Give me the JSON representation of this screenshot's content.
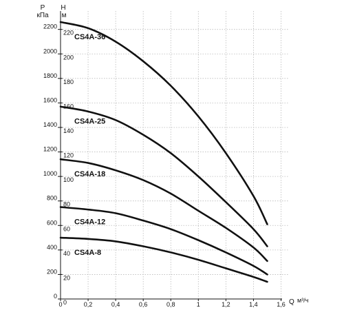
{
  "chart_data": {
    "type": "line",
    "x_label": "Q",
    "x_unit": "м³/ч",
    "x_ticks": [
      "0",
      "0,2",
      "0,4",
      "0,6",
      "0,8",
      "1",
      "1,2",
      "1,4",
      "1,6"
    ],
    "xlim": [
      0,
      1.65
    ],
    "y_left_label": "P",
    "y_left_unit": "кПа",
    "y_left_ticks": [
      "0",
      "200",
      "400",
      "600",
      "800",
      "1000",
      "1200",
      "1400",
      "1600",
      "1800",
      "2000",
      "2200"
    ],
    "y_right_label": "H",
    "y_right_unit": "м",
    "y_right_ticks": [
      "0",
      "20",
      "40",
      "60",
      "80",
      "100",
      "120",
      "140",
      "160",
      "180",
      "200",
      "220"
    ],
    "ylim_head_m": [
      0,
      235
    ],
    "grid": "dotted",
    "series": [
      {
        "name": "CS4A-36",
        "x": [
          0,
          0.2,
          0.4,
          0.6,
          0.8,
          1.0,
          1.2,
          1.4,
          1.5
        ],
        "y": [
          226,
          221,
          210,
          194,
          174,
          149,
          119,
          84,
          61
        ]
      },
      {
        "name": "CS4A-25",
        "x": [
          0,
          0.2,
          0.4,
          0.6,
          0.8,
          1.0,
          1.2,
          1.4,
          1.5
        ],
        "y": [
          157,
          153,
          146,
          134,
          119,
          100,
          79,
          57,
          43
        ]
      },
      {
        "name": "CS4A-18",
        "x": [
          0,
          0.2,
          0.4,
          0.6,
          0.8,
          1.0,
          1.2,
          1.4,
          1.5
        ],
        "y": [
          114,
          111,
          105,
          97,
          86,
          72,
          58,
          42,
          31
        ]
      },
      {
        "name": "CS4A-12",
        "x": [
          0,
          0.2,
          0.4,
          0.6,
          0.8,
          1.0,
          1.2,
          1.4,
          1.5
        ],
        "y": [
          75,
          73,
          70,
          64,
          57,
          48,
          38,
          27,
          20
        ]
      },
      {
        "name": "CS4A-8",
        "x": [
          0,
          0.2,
          0.4,
          0.6,
          0.8,
          1.0,
          1.2,
          1.4,
          1.5
        ],
        "y": [
          50,
          49,
          47,
          43,
          38,
          32,
          25,
          18,
          14
        ]
      }
    ]
  }
}
